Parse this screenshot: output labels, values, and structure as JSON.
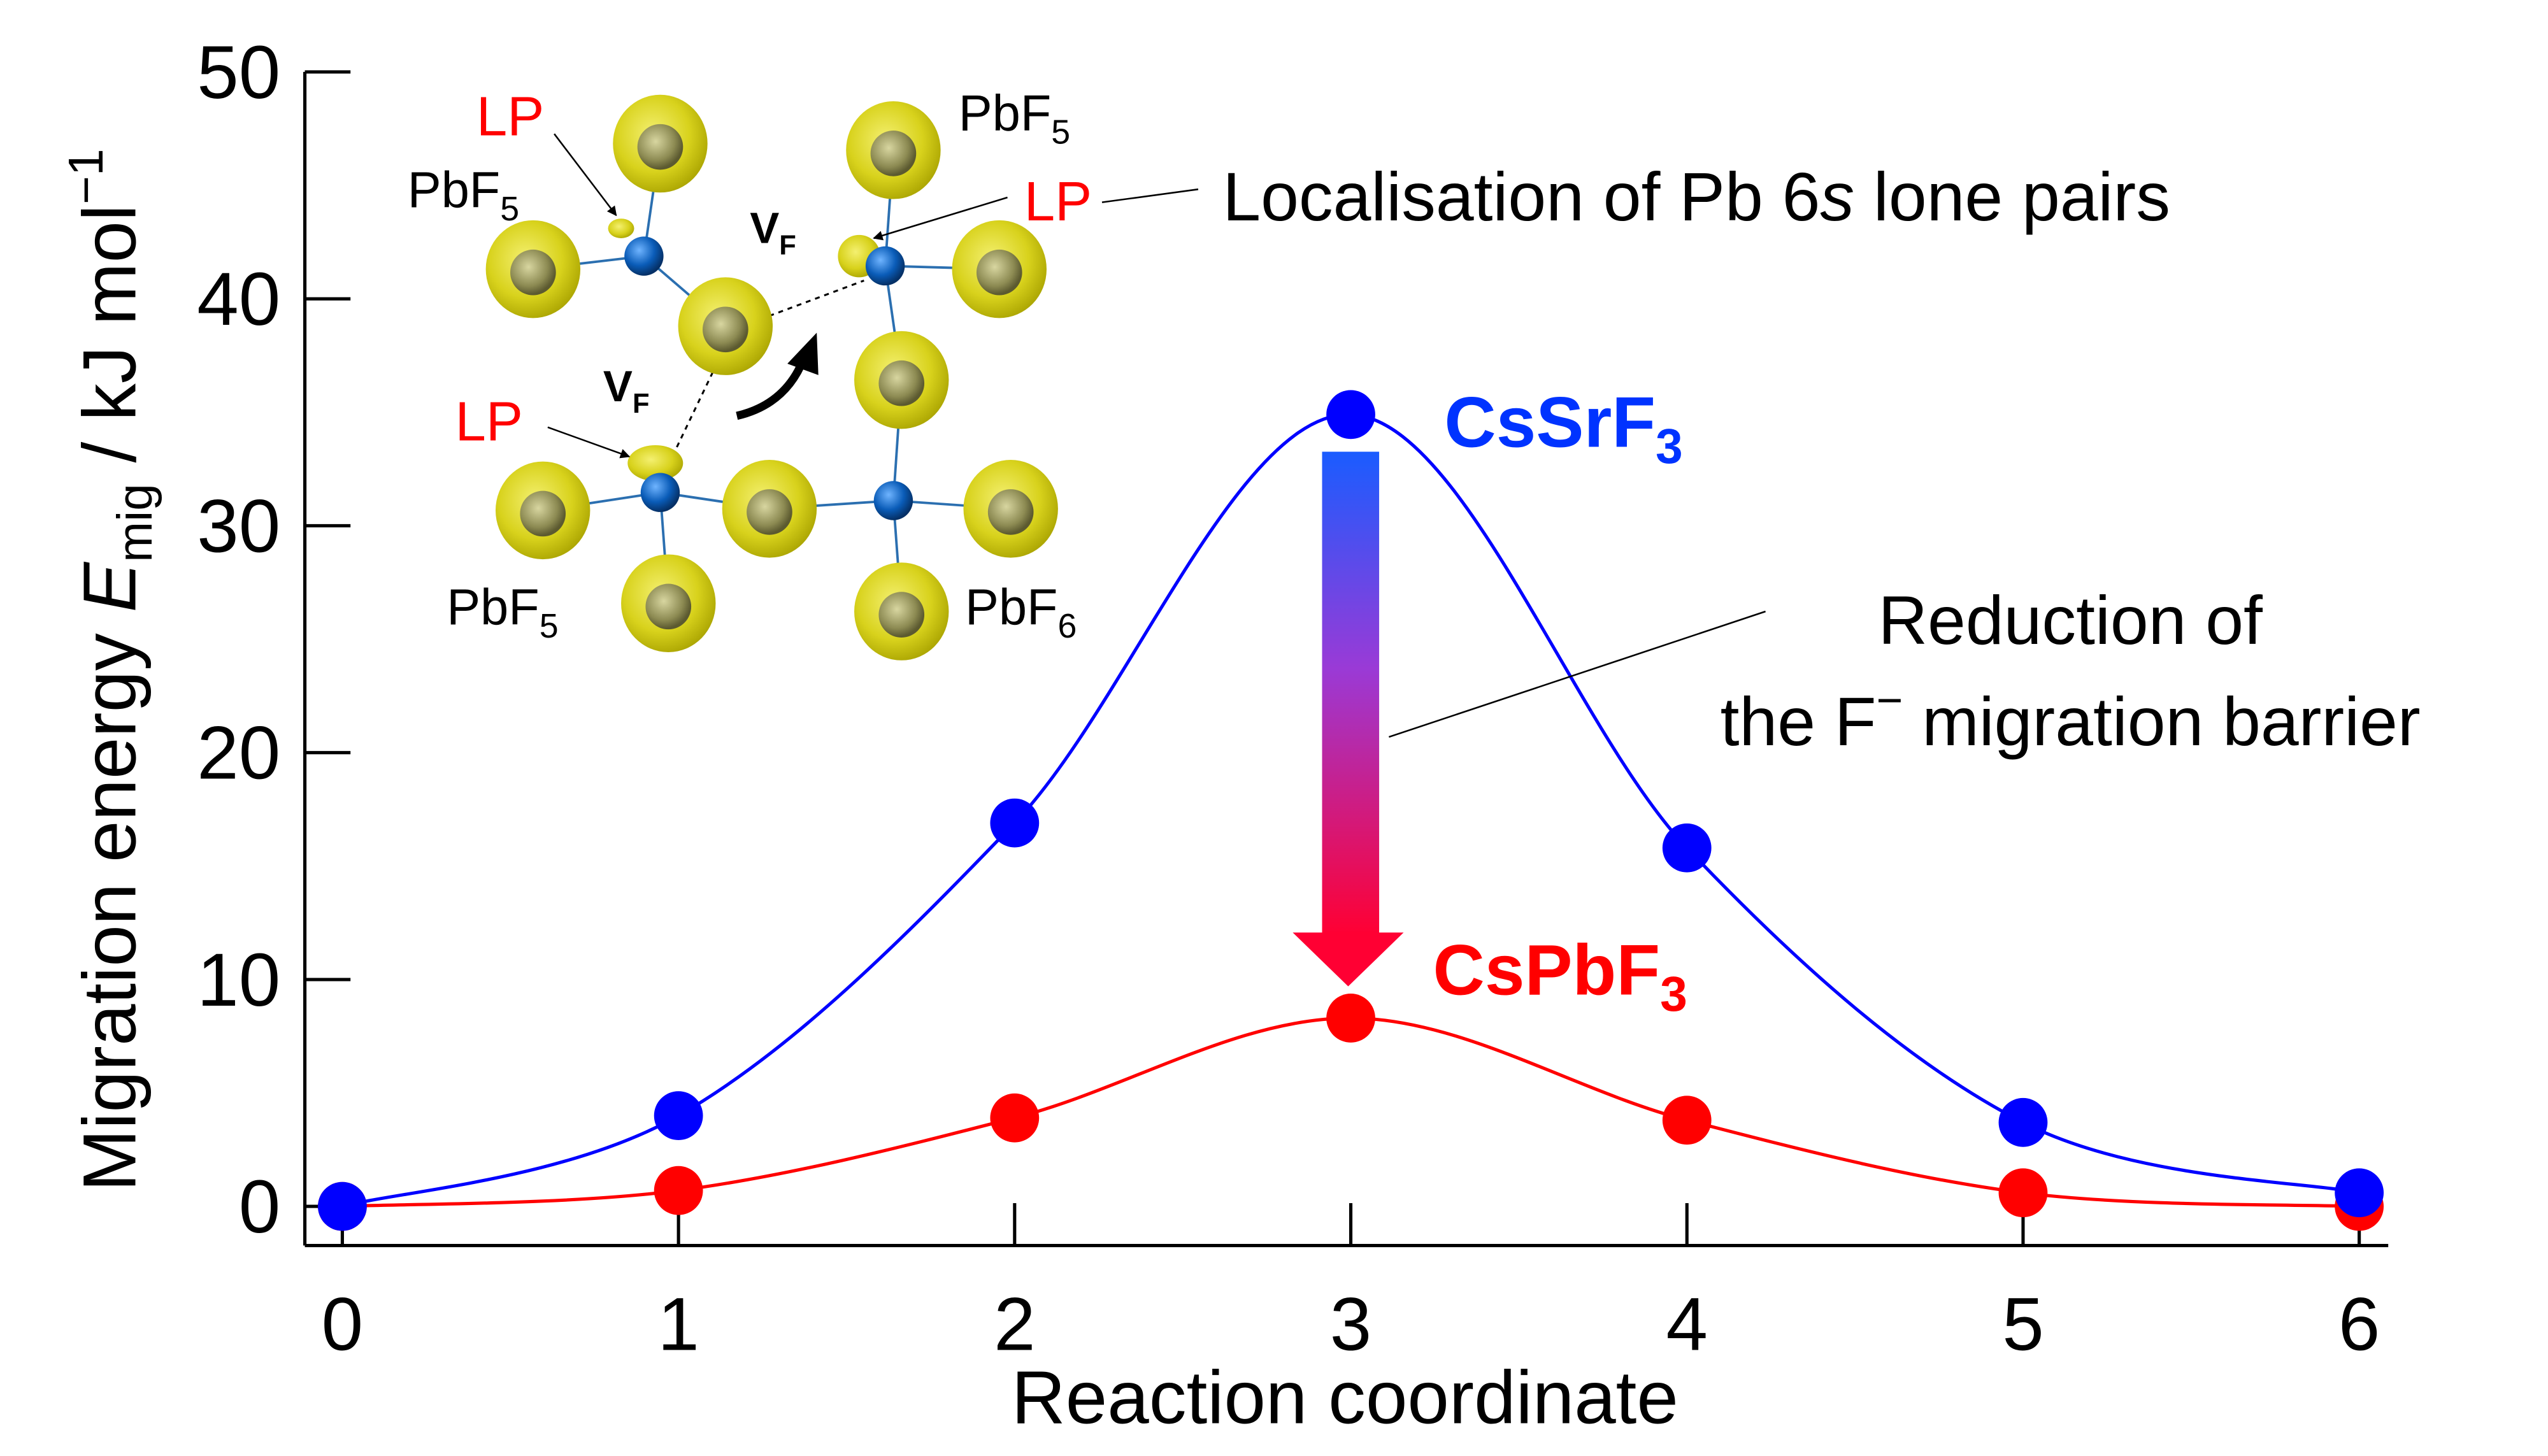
{
  "chart_data": {
    "type": "line",
    "xlabel": "Reaction coordinate",
    "ylabel": {
      "prefix": "Migration energy ",
      "symbol": "E",
      "symbol_sub": "mig",
      "units": " / kJ mol",
      "units_sup": "−1"
    },
    "x": [
      0,
      1,
      2,
      3,
      4,
      5,
      6
    ],
    "xlim": [
      0,
      6
    ],
    "ylim": [
      0,
      50
    ],
    "xticks": [
      "0",
      "1",
      "2",
      "3",
      "4",
      "5",
      "6"
    ],
    "yticks": [
      "0",
      "10",
      "20",
      "30",
      "40",
      "50"
    ],
    "grid": false,
    "series": [
      {
        "name": "CsSrF3",
        "color": "#0000ff",
        "values": [
          0,
          4.0,
          16.9,
          34.9,
          15.8,
          3.7,
          0.6
        ]
      },
      {
        "name": "CsPbF3",
        "color": "#ff0000",
        "values": [
          0,
          0.7,
          3.9,
          8.3,
          3.8,
          0.6,
          0
        ]
      }
    ],
    "labels": {
      "cssrf3": {
        "main": "CsSrF",
        "sub": "3"
      },
      "cspbf3": {
        "main": "CsPbF",
        "sub": "3"
      }
    },
    "annotations": {
      "reduction_line1": "Reduction of",
      "reduction_line2_pre": "the F",
      "reduction_line2_sup": "−",
      "reduction_line2_post": " migration barrier",
      "localisation_pre": "Localisation of Pb 6",
      "localisation_italic": "s",
      "localisation_post": " lone pairs"
    },
    "inset": {
      "lp": "LP",
      "vf_main": "V",
      "vf_sub": "F",
      "pbf_main": "PbF",
      "pbf5_sub": "5",
      "pbf6_sub": "6"
    }
  }
}
